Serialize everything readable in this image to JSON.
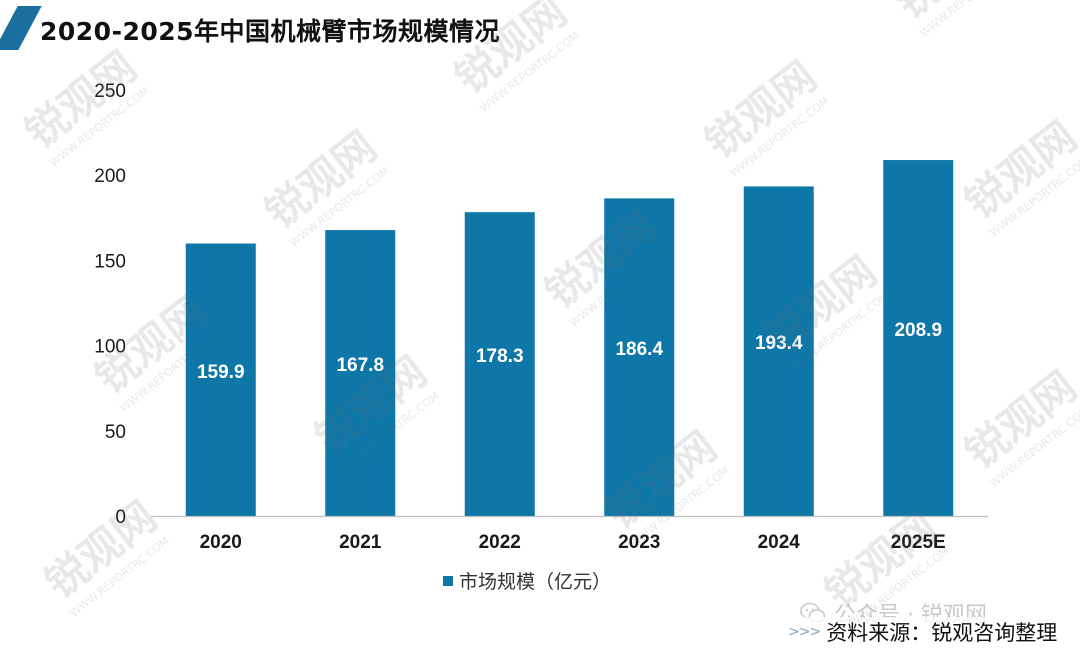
{
  "title": "2020-2025年中国机械臂市场规模情况",
  "colors": {
    "bar": "#0e77a8",
    "accent": "#1a6f9e",
    "axis": "#bfbfbf",
    "bar_label": "#ffffff"
  },
  "chart_data": {
    "type": "bar",
    "categories": [
      "2020",
      "2021",
      "2022",
      "2023",
      "2024",
      "2025E"
    ],
    "series": [
      {
        "name": "市场规模（亿元）",
        "values": [
          159.9,
          167.8,
          178.3,
          186.4,
          193.4,
          208.9
        ]
      }
    ],
    "ylim": [
      0,
      250
    ],
    "yticks": [
      0,
      50,
      100,
      150,
      200,
      250
    ],
    "grid": false,
    "legend_position": "bottom",
    "data_labels": true
  },
  "legend": {
    "label": "市场规模（亿元）"
  },
  "footer": {
    "wechat": "公众号 · 锐观网",
    "source_arrows": ">>>",
    "source": "资料来源：锐观咨询整理"
  },
  "watermark": {
    "logo": "锐观网",
    "url": "WWW.REPORTRC.COM"
  }
}
